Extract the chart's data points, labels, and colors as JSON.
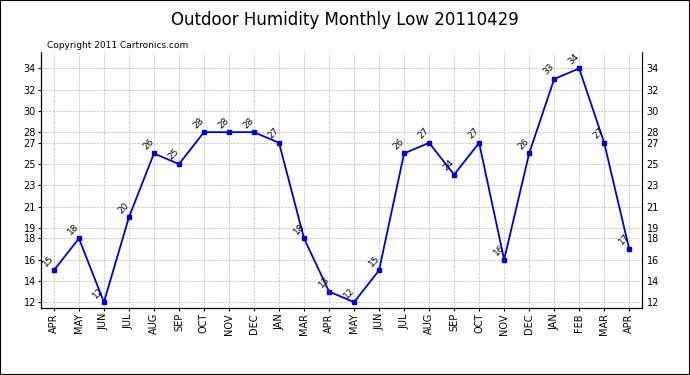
{
  "title": "Outdoor Humidity Monthly Low 20110429",
  "copyright": "Copyright 2011 Cartronics.com",
  "months": [
    "APR",
    "MAY",
    "JUN",
    "JUL",
    "AUG",
    "SEP",
    "OCT",
    "NOV",
    "DEC",
    "JAN",
    "MAR",
    "APR",
    "MAY",
    "JUN",
    "JUL",
    "AUG",
    "SEP",
    "OCT",
    "NOV",
    "DEC",
    "JAN",
    "FEB",
    "MAR",
    "APR"
  ],
  "values": [
    15,
    18,
    12,
    20,
    26,
    25,
    28,
    28,
    28,
    27,
    18,
    13,
    12,
    15,
    26,
    27,
    24,
    27,
    16,
    26,
    33,
    34,
    27,
    17
  ],
  "ylim": [
    11.5,
    35.5
  ],
  "yticks": [
    12,
    14,
    16,
    18,
    19,
    21,
    23,
    25,
    27,
    28,
    30,
    32,
    34
  ],
  "line_color": "#0000cc",
  "marker": "s",
  "marker_size": 3,
  "marker_color": "#0000cc",
  "bg_color": "#ffffff",
  "grid_color": "#aaaaaa",
  "title_fontsize": 12,
  "annot_fontsize": 6.5,
  "tick_fontsize": 7
}
